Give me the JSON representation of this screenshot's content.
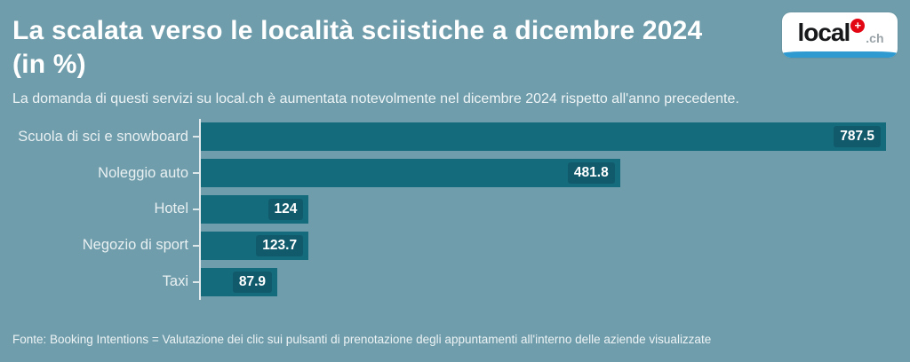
{
  "background": "#6f9dab",
  "header": {
    "title_line1": "La scalata verso le località sciistiche a dicembre 2024",
    "title_line2": "(in %)",
    "subtitle": "La domanda di questi servizi su local.ch è aumentata notevolmente nel dicembre 2024 rispetto all'anno precedente."
  },
  "logo": {
    "wordmark": "local",
    "tld": ".ch",
    "cross_glyph": "+",
    "cross_color": "#e30613",
    "stripe_color": "#2f9ad0"
  },
  "chart_data": {
    "type": "bar",
    "orientation": "horizontal",
    "title": "La scalata verso le località sciistiche a dicembre 2024 (in %)",
    "categories": [
      "Scuola di sci e snowboard",
      "Noleggio auto",
      "Hotel",
      "Negozio di sport",
      "Taxi"
    ],
    "values": [
      787.5,
      481.8,
      124,
      123.7,
      87.9
    ],
    "value_labels": [
      "787.5",
      "481.8",
      "124",
      "123.7",
      "87.9"
    ],
    "xlim": [
      0,
      787.5
    ],
    "unit": "%",
    "bar_color": "#146b7c",
    "value_label_bg": "#115a6c",
    "axis_color": "#e3ebee",
    "grid": false,
    "legend": false
  },
  "footer": {
    "source": "Fonte: Booking Intentions = Valutazione dei clic sui pulsanti di prenotazione degli appuntamenti all'interno delle aziende visualizzate"
  }
}
